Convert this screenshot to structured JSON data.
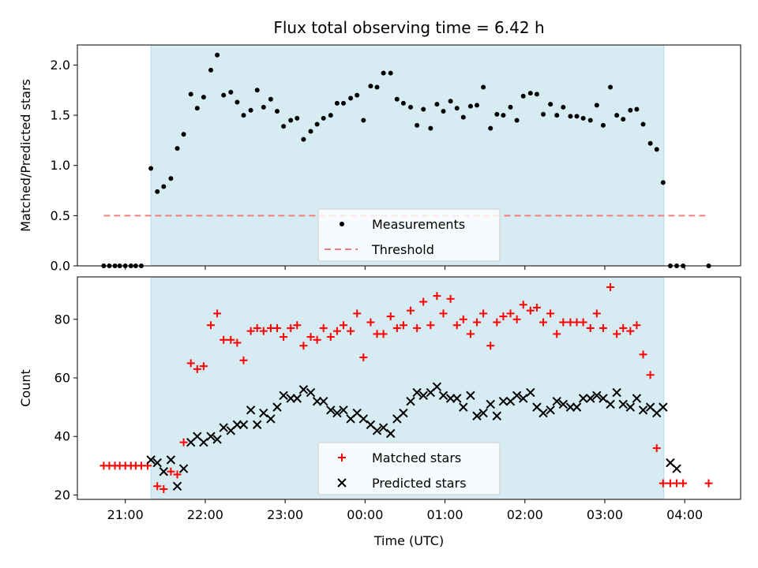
{
  "chart_data": {
    "title": "Flux total observing time = 6.42 h",
    "xlabel": "Time (UTC)",
    "x_unit": "hours since midnight UTC (negative = previous day)",
    "xlim": [
      -3.6,
      4.7
    ],
    "xticks": [
      {
        "value": -3,
        "label": "21:00"
      },
      {
        "value": -2,
        "label": "22:00"
      },
      {
        "value": -1,
        "label": "23:00"
      },
      {
        "value": 0,
        "label": "00:00"
      },
      {
        "value": 1,
        "label": "01:00"
      },
      {
        "value": 2,
        "label": "02:00"
      },
      {
        "value": 3,
        "label": "03:00"
      },
      {
        "value": 4,
        "label": "04:00"
      }
    ],
    "observing_window": {
      "start": -2.68,
      "end": 3.74,
      "color": "#add8e6"
    },
    "panels": [
      {
        "type": "scatter",
        "ylabel": "Matched/Predicted stars",
        "ylim": [
          0,
          2.2
        ],
        "yticks": [
          0.0,
          0.5,
          1.0,
          1.5,
          2.0
        ],
        "ytick_labels": [
          "0.0",
          "0.5",
          "1.0",
          "1.5",
          "2.0"
        ],
        "legend": {
          "position": "lower-center"
        },
        "series": [
          {
            "name": "Measurements",
            "marker": "dot",
            "color": "#000000",
            "x": [
              -3.27,
              -3.2,
              -3.13,
              -3.07,
              -3.0,
              -2.93,
              -2.87,
              -2.8,
              -2.68,
              -2.6,
              -2.52,
              -2.43,
              -2.35,
              -2.27,
              -2.18,
              -2.1,
              -2.02,
              -1.93,
              -1.85,
              -1.77,
              -1.68,
              -1.6,
              -1.52,
              -1.43,
              -1.35,
              -1.27,
              -1.18,
              -1.1,
              -1.02,
              -0.93,
              -0.85,
              -0.77,
              -0.68,
              -0.6,
              -0.52,
              -0.43,
              -0.35,
              -0.27,
              -0.18,
              -0.1,
              -0.02,
              0.07,
              0.15,
              0.23,
              0.32,
              0.4,
              0.48,
              0.57,
              0.65,
              0.73,
              0.82,
              0.9,
              0.98,
              1.07,
              1.15,
              1.23,
              1.32,
              1.4,
              1.48,
              1.57,
              1.65,
              1.73,
              1.82,
              1.9,
              1.98,
              2.07,
              2.15,
              2.23,
              2.32,
              2.4,
              2.48,
              2.57,
              2.65,
              2.73,
              2.82,
              2.9,
              2.98,
              3.07,
              3.15,
              3.23,
              3.32,
              3.4,
              3.48,
              3.57,
              3.65,
              3.73,
              3.82,
              3.9,
              3.98,
              4.3
            ],
            "values": [
              0,
              0,
              0,
              0,
              0,
              0,
              0,
              0,
              0.97,
              0.74,
              0.79,
              0.87,
              1.17,
              1.31,
              1.71,
              1.57,
              1.68,
              1.95,
              2.1,
              1.7,
              1.73,
              1.63,
              1.5,
              1.55,
              1.75,
              1.58,
              1.66,
              1.54,
              1.39,
              1.45,
              1.47,
              1.26,
              1.34,
              1.41,
              1.47,
              1.5,
              1.62,
              1.62,
              1.67,
              1.7,
              1.45,
              1.79,
              1.78,
              1.92,
              1.92,
              1.66,
              1.62,
              1.58,
              1.4,
              1.56,
              1.37,
              1.61,
              1.54,
              1.64,
              1.57,
              1.48,
              1.59,
              1.6,
              1.78,
              1.37,
              1.51,
              1.5,
              1.58,
              1.45,
              1.69,
              1.72,
              1.71,
              1.51,
              1.61,
              1.5,
              1.58,
              1.49,
              1.49,
              1.47,
              1.45,
              1.6,
              1.4,
              1.78,
              1.5,
              1.46,
              1.55,
              1.56,
              1.41,
              1.22,
              1.16,
              0.83,
              0,
              0,
              0,
              0
            ]
          },
          {
            "name": "Threshold",
            "line": "dashed",
            "color": "#f08080",
            "x": [
              -3.27,
              4.27
            ],
            "values": [
              0.5,
              0.5
            ]
          }
        ]
      },
      {
        "type": "scatter",
        "ylabel": "Count",
        "ylim": [
          18.5,
          94.5
        ],
        "yticks": [
          20,
          40,
          60,
          80
        ],
        "ytick_labels": [
          "20",
          "40",
          "60",
          "80"
        ],
        "legend": {
          "position": "lower-center"
        },
        "series": [
          {
            "name": "Matched stars",
            "marker": "plus",
            "color": "#ff0000",
            "x": [
              -3.27,
              -3.2,
              -3.13,
              -3.07,
              -3.0,
              -2.93,
              -2.87,
              -2.8,
              -2.72,
              -2.6,
              -2.52,
              -2.43,
              -2.35,
              -2.27,
              -2.18,
              -2.1,
              -2.02,
              -1.93,
              -1.85,
              -1.77,
              -1.68,
              -1.6,
              -1.52,
              -1.43,
              -1.35,
              -1.27,
              -1.18,
              -1.1,
              -1.02,
              -0.93,
              -0.85,
              -0.77,
              -0.68,
              -0.6,
              -0.52,
              -0.43,
              -0.35,
              -0.27,
              -0.18,
              -0.1,
              -0.02,
              0.07,
              0.15,
              0.23,
              0.32,
              0.4,
              0.48,
              0.57,
              0.65,
              0.73,
              0.82,
              0.9,
              0.98,
              1.07,
              1.15,
              1.23,
              1.32,
              1.4,
              1.48,
              1.57,
              1.65,
              1.73,
              1.82,
              1.9,
              1.98,
              2.07,
              2.15,
              2.23,
              2.32,
              2.4,
              2.48,
              2.57,
              2.65,
              2.73,
              2.82,
              2.9,
              2.98,
              3.07,
              3.15,
              3.23,
              3.32,
              3.4,
              3.48,
              3.57,
              3.65,
              3.73,
              3.82,
              3.9,
              3.98,
              4.3
            ],
            "values": [
              30,
              30,
              30,
              30,
              30,
              30,
              30,
              30,
              30,
              23,
              22,
              28,
              27,
              38,
              65,
              63,
              64,
              78,
              82,
              73,
              73,
              72,
              66,
              76,
              77,
              76,
              77,
              77,
              74,
              77,
              78,
              71,
              74,
              73,
              77,
              74,
              76,
              78,
              76,
              82,
              67,
              79,
              75,
              75,
              81,
              77,
              78,
              83,
              77,
              86,
              78,
              88,
              82,
              87,
              78,
              80,
              75,
              79,
              82,
              71,
              79,
              81,
              82,
              80,
              85,
              83,
              84,
              79,
              82,
              75,
              79,
              79,
              79,
              79,
              77,
              82,
              77,
              91,
              75,
              77,
              76,
              78,
              68,
              61,
              36,
              24,
              24,
              24,
              24,
              24
            ]
          },
          {
            "name": "Predicted stars",
            "marker": "x",
            "color": "#000000",
            "x": [
              -2.68,
              -2.6,
              -2.52,
              -2.43,
              -2.35,
              -2.27,
              -2.18,
              -2.1,
              -2.02,
              -1.93,
              -1.85,
              -1.77,
              -1.68,
              -1.6,
              -1.52,
              -1.43,
              -1.35,
              -1.27,
              -1.18,
              -1.1,
              -1.02,
              -0.93,
              -0.85,
              -0.77,
              -0.68,
              -0.6,
              -0.52,
              -0.43,
              -0.35,
              -0.27,
              -0.18,
              -0.1,
              -0.02,
              0.07,
              0.15,
              0.23,
              0.32,
              0.4,
              0.48,
              0.57,
              0.65,
              0.73,
              0.82,
              0.9,
              0.98,
              1.07,
              1.15,
              1.23,
              1.32,
              1.4,
              1.48,
              1.57,
              1.65,
              1.73,
              1.82,
              1.9,
              1.98,
              2.07,
              2.15,
              2.23,
              2.32,
              2.4,
              2.48,
              2.57,
              2.65,
              2.73,
              2.82,
              2.9,
              2.98,
              3.07,
              3.15,
              3.23,
              3.32,
              3.4,
              3.48,
              3.57,
              3.65,
              3.73,
              3.82,
              3.9
            ],
            "values": [
              32,
              31,
              28,
              32,
              23,
              29,
              38,
              40,
              38,
              40,
              39,
              43,
              42,
              44,
              44,
              49,
              44,
              48,
              46,
              50,
              54,
              53,
              53,
              56,
              55,
              52,
              52,
              49,
              48,
              49,
              46,
              48,
              46,
              44,
              42,
              43,
              41,
              46,
              48,
              52,
              55,
              54,
              55,
              57,
              54,
              53,
              53,
              50,
              54,
              47,
              48,
              51,
              47,
              52,
              52,
              54,
              53,
              55,
              50,
              48,
              49,
              52,
              51,
              50,
              50,
              53,
              53,
              54,
              53,
              51,
              55,
              51,
              50,
              53,
              49,
              50,
              48,
              50,
              31,
              29
            ]
          }
        ]
      }
    ]
  }
}
